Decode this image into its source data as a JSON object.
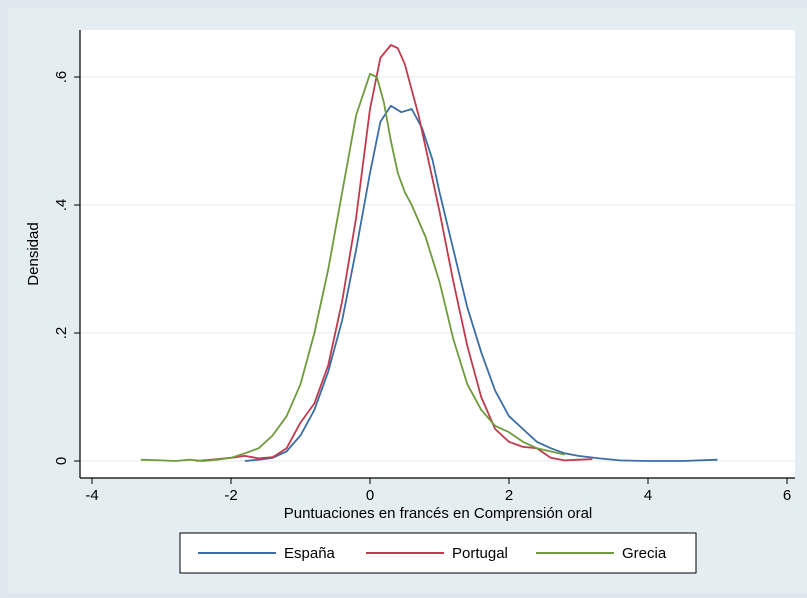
{
  "chart_data": {
    "type": "line",
    "title": "",
    "xlabel": "Puntuaciones en francés en Comprensión oral",
    "ylabel": "Densidad",
    "xlim": [
      -4,
      6
    ],
    "ylim": [
      0,
      0.65
    ],
    "xticks": [
      -4,
      -2,
      0,
      2,
      4,
      6
    ],
    "xtick_labels": [
      "-4",
      "-2",
      "0",
      "2",
      "4",
      "6"
    ],
    "yticks": [
      0,
      0.2,
      0.4,
      0.6
    ],
    "ytick_labels": [
      "0",
      ".2",
      ".4",
      ".6"
    ],
    "grid": true,
    "legend": "bottom",
    "series": [
      {
        "name": "España",
        "color": "#3a6ea5",
        "x": [
          -1.8,
          -1.6,
          -1.4,
          -1.2,
          -1.0,
          -0.8,
          -0.6,
          -0.4,
          -0.2,
          0.0,
          0.15,
          0.3,
          0.45,
          0.6,
          0.75,
          0.9,
          1.0,
          1.2,
          1.4,
          1.6,
          1.8,
          2.0,
          2.2,
          2.4,
          2.6,
          2.8,
          3.0,
          3.3,
          3.6,
          4.0,
          4.5,
          5.0
        ],
        "y": [
          0.0,
          0.002,
          0.005,
          0.015,
          0.04,
          0.08,
          0.14,
          0.22,
          0.33,
          0.45,
          0.53,
          0.555,
          0.545,
          0.55,
          0.52,
          0.47,
          0.42,
          0.33,
          0.24,
          0.17,
          0.11,
          0.07,
          0.05,
          0.03,
          0.02,
          0.012,
          0.008,
          0.004,
          0.001,
          0.0,
          0.0,
          0.002
        ]
      },
      {
        "name": "Portugal",
        "color": "#c03a4e",
        "x": [
          -2.5,
          -2.2,
          -2.0,
          -1.8,
          -1.6,
          -1.4,
          -1.2,
          -1.0,
          -0.8,
          -0.6,
          -0.4,
          -0.2,
          0.0,
          0.15,
          0.3,
          0.4,
          0.5,
          0.6,
          0.7,
          0.8,
          0.9,
          1.0,
          1.2,
          1.4,
          1.6,
          1.8,
          2.0,
          2.2,
          2.4,
          2.6,
          2.8,
          3.0,
          3.2
        ],
        "y": [
          0.0,
          0.003,
          0.005,
          0.008,
          0.004,
          0.006,
          0.02,
          0.06,
          0.09,
          0.15,
          0.25,
          0.38,
          0.55,
          0.63,
          0.65,
          0.645,
          0.62,
          0.58,
          0.54,
          0.49,
          0.44,
          0.39,
          0.28,
          0.18,
          0.1,
          0.05,
          0.03,
          0.022,
          0.02,
          0.005,
          0.001,
          0.002,
          0.003
        ]
      },
      {
        "name": "Grecia",
        "color": "#6f9a3d",
        "x": [
          -3.3,
          -3.0,
          -2.8,
          -2.6,
          -2.4,
          -2.2,
          -2.0,
          -1.8,
          -1.6,
          -1.4,
          -1.2,
          -1.0,
          -0.8,
          -0.6,
          -0.4,
          -0.2,
          0.0,
          0.1,
          0.2,
          0.3,
          0.4,
          0.5,
          0.6,
          0.8,
          1.0,
          1.2,
          1.4,
          1.6,
          1.8,
          2.0,
          2.2,
          2.4,
          2.6,
          2.8
        ],
        "y": [
          0.002,
          0.001,
          0.0,
          0.002,
          0.0,
          0.002,
          0.005,
          0.012,
          0.02,
          0.04,
          0.07,
          0.12,
          0.2,
          0.3,
          0.42,
          0.54,
          0.605,
          0.6,
          0.56,
          0.5,
          0.45,
          0.42,
          0.4,
          0.35,
          0.28,
          0.19,
          0.12,
          0.08,
          0.055,
          0.045,
          0.03,
          0.02,
          0.015,
          0.01
        ]
      }
    ]
  }
}
